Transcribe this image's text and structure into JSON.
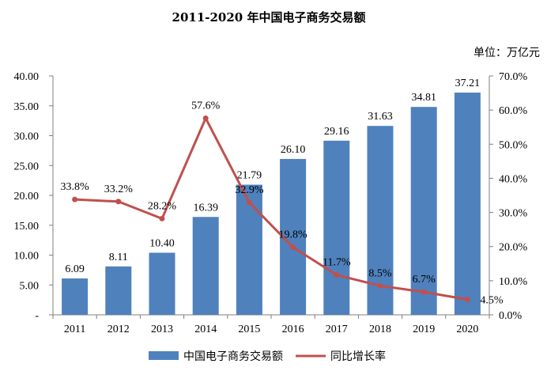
{
  "chart_data": {
    "type": "bar",
    "title": "2011-2020 年中国电子商务交易额",
    "unit_label": "单位：万亿元",
    "categories": [
      "2011",
      "2012",
      "2013",
      "2014",
      "2015",
      "2016",
      "2017",
      "2018",
      "2019",
      "2020"
    ],
    "series": [
      {
        "name": "中国电子商务交易额",
        "type": "bar",
        "axis": "left",
        "color": "#4f81bd",
        "values": [
          6.09,
          8.11,
          10.4,
          16.39,
          21.79,
          26.1,
          29.16,
          31.63,
          34.81,
          37.21
        ],
        "labels": [
          "6.09",
          "8.11",
          "10.40",
          "16.39",
          "21.79",
          "26.10",
          "29.16",
          "31.63",
          "34.81",
          "37.21"
        ]
      },
      {
        "name": "同比增长率",
        "type": "line",
        "axis": "right",
        "color": "#c0504d",
        "values": [
          33.8,
          33.2,
          28.2,
          57.6,
          32.9,
          19.8,
          11.7,
          8.5,
          6.7,
          4.5
        ],
        "labels": [
          "33.8%",
          "33.2%",
          "28.2%",
          "57.6%",
          "32.9%",
          "19.8%",
          "11.7%",
          "8.5%",
          "6.7%",
          "4.5%"
        ]
      }
    ],
    "y_left": {
      "min": 0,
      "max": 40,
      "ticks": [
        0,
        5,
        10,
        15,
        20,
        25,
        30,
        35,
        40
      ],
      "tick_labels": [
        "-",
        "5.00",
        "10.00",
        "15.00",
        "20.00",
        "25.00",
        "30.00",
        "35.00",
        "40.00"
      ]
    },
    "y_right": {
      "min": 0,
      "max": 70,
      "ticks": [
        0,
        10,
        20,
        30,
        40,
        50,
        60,
        70
      ],
      "tick_labels": [
        "0.0%",
        "10.0%",
        "20.0%",
        "30.0%",
        "40.0%",
        "50.0%",
        "60.0%",
        "70.0%"
      ]
    },
    "grid": false,
    "legend_position": "bottom"
  }
}
